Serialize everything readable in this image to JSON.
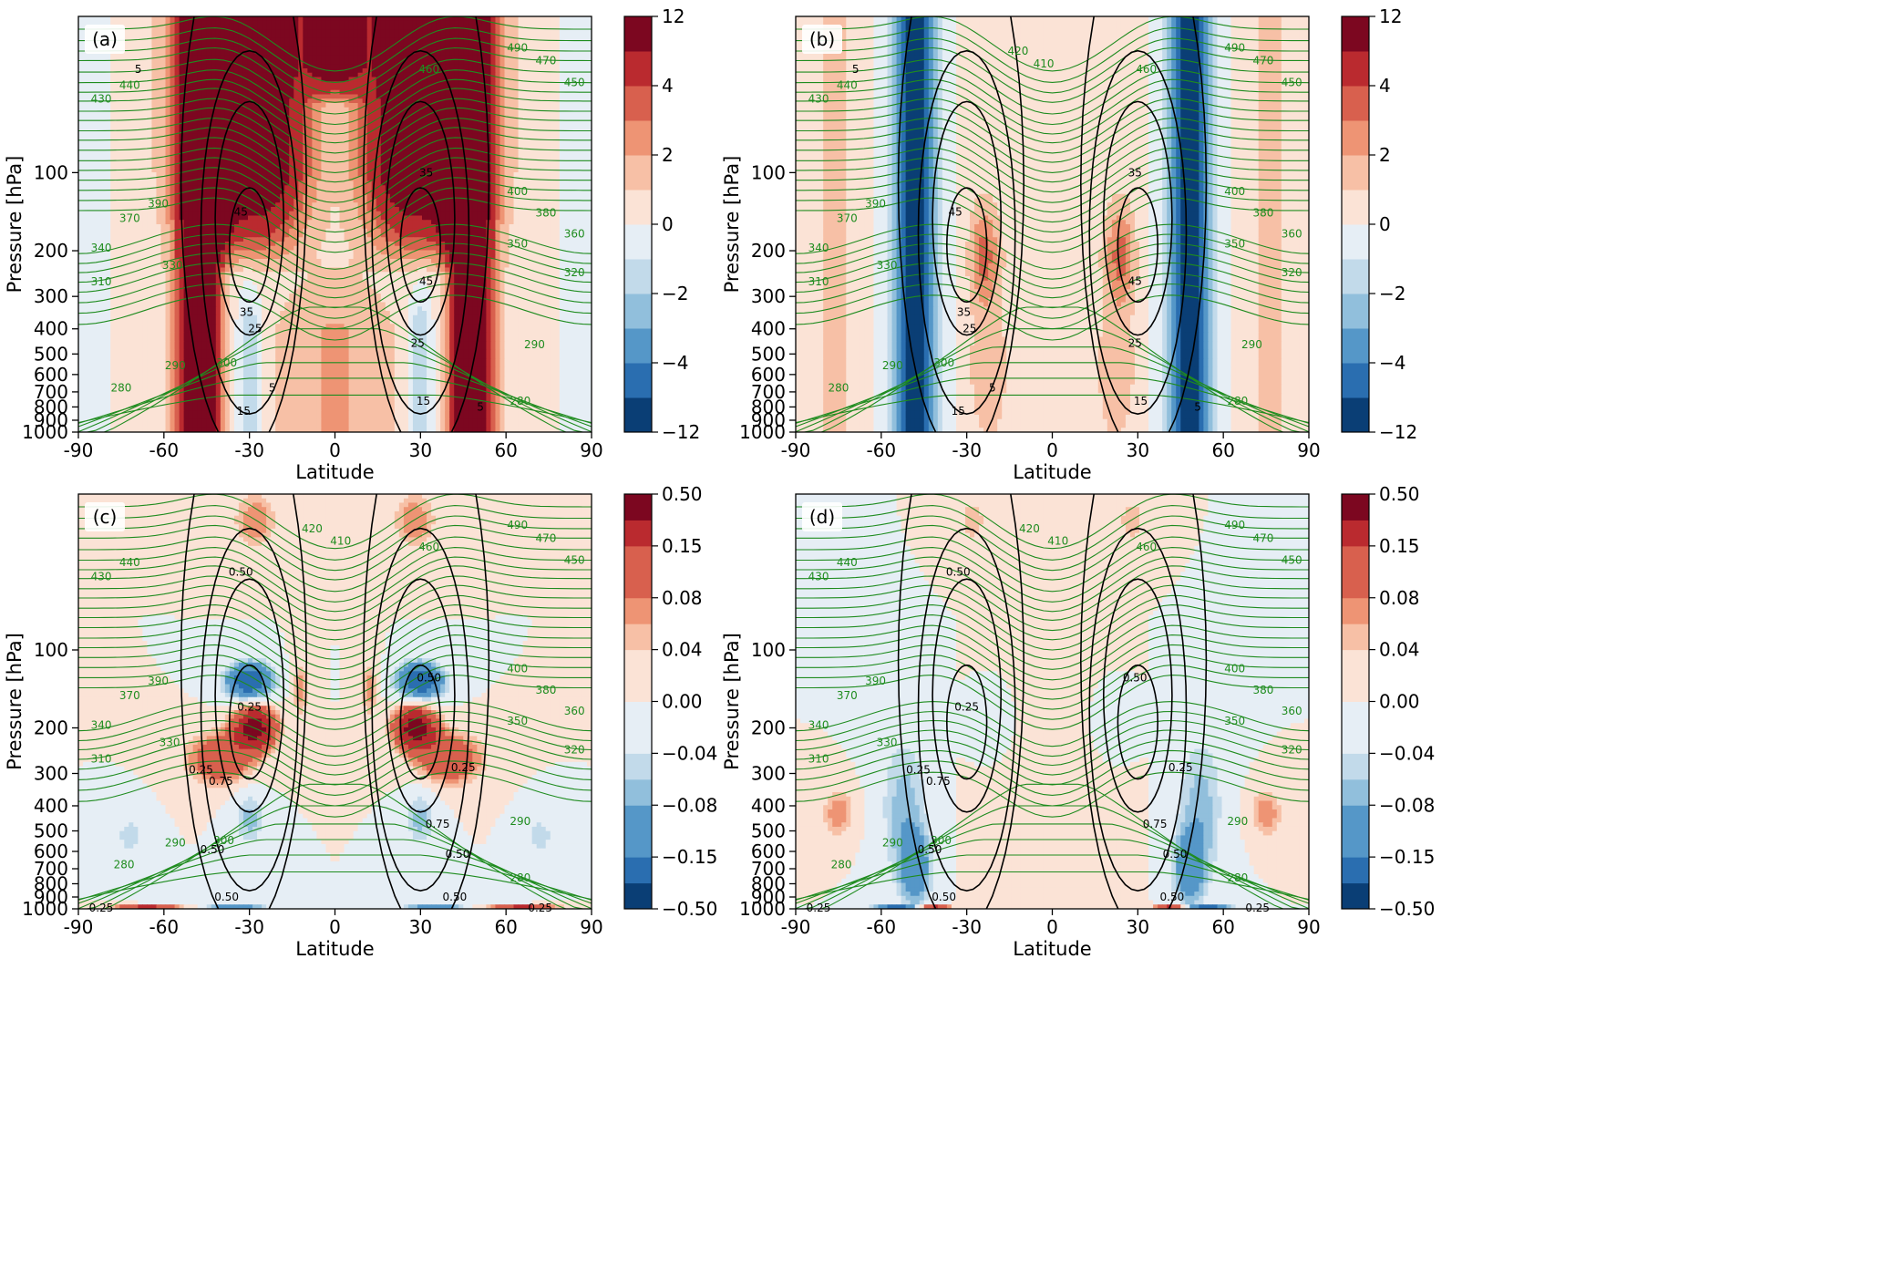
{
  "figure": {
    "colors": {
      "positive_scale": [
        "#fbe3d6",
        "#f7c0a6",
        "#ee9474",
        "#d8604e",
        "#ba2a2f",
        "#7c0720"
      ],
      "negative_scale": [
        "#e6eef5",
        "#c2daea",
        "#91bfdc",
        "#5597c8",
        "#2a6eb0",
        "#0a3e75"
      ],
      "theta_contour": "#1f8c1f",
      "wind_contour": "#000000"
    }
  },
  "chart_data": [
    {
      "type": "heatmap",
      "panel": "(a)",
      "xlabel": "Latitude",
      "ylabel": "Pressure [hPa]",
      "xlim": [
        -90,
        90
      ],
      "ylim": [
        1000,
        25
      ],
      "yscale": "log",
      "xticks": [
        "-90",
        "-60",
        "-30",
        "0",
        "30",
        "60",
        "90"
      ],
      "yticks": [
        "100",
        "200",
        "300",
        "400",
        "500",
        "600",
        "700",
        "800",
        "900",
        "1000"
      ],
      "colorbar_ticks": [
        "12",
        "4",
        "2",
        "0",
        "−2",
        "−4",
        "−12"
      ],
      "colorbar_bounds": [
        -12,
        -6,
        -4,
        -3,
        -2,
        -1,
        0,
        1,
        2,
        3,
        4,
        6,
        12
      ],
      "theta_labels": [
        {
          "text": "430",
          "lat": -82,
          "p": 52
        },
        {
          "text": "440",
          "lat": -72,
          "p": 46
        },
        {
          "text": "390",
          "lat": -62,
          "p": 132
        },
        {
          "text": "370",
          "lat": -72,
          "p": 150
        },
        {
          "text": "340",
          "lat": -82,
          "p": 195
        },
        {
          "text": "310",
          "lat": -82,
          "p": 263
        },
        {
          "text": "330",
          "lat": -57,
          "p": 228
        },
        {
          "text": "280",
          "lat": -75,
          "p": 675
        },
        {
          "text": "290",
          "lat": -56,
          "p": 555
        },
        {
          "text": "300",
          "lat": -38,
          "p": 540
        },
        {
          "text": "490",
          "lat": 64,
          "p": 33
        },
        {
          "text": "470",
          "lat": 74,
          "p": 37
        },
        {
          "text": "460",
          "lat": 33,
          "p": 40
        },
        {
          "text": "450",
          "lat": 84,
          "p": 45
        },
        {
          "text": "400",
          "lat": 64,
          "p": 118
        },
        {
          "text": "380",
          "lat": 74,
          "p": 143
        },
        {
          "text": "360",
          "lat": 84,
          "p": 172
        },
        {
          "text": "350",
          "lat": 64,
          "p": 188
        },
        {
          "text": "320",
          "lat": 84,
          "p": 243
        },
        {
          "text": "290",
          "lat": 70,
          "p": 460
        },
        {
          "text": "280",
          "lat": 65,
          "p": 760
        }
      ],
      "wind_labels": [
        {
          "text": "5",
          "lat": -69,
          "p": 40
        },
        {
          "text": "35",
          "lat": 32,
          "p": 100
        },
        {
          "text": "45",
          "lat": -33,
          "p": 142
        },
        {
          "text": "45",
          "lat": 32,
          "p": 262
        },
        {
          "text": "35",
          "lat": -31,
          "p": 345
        },
        {
          "text": "25",
          "lat": -28,
          "p": 400
        },
        {
          "text": "25",
          "lat": 29,
          "p": 455
        },
        {
          "text": "5",
          "lat": -22,
          "p": 675
        },
        {
          "text": "15",
          "lat": -32,
          "p": 830
        },
        {
          "text": "15",
          "lat": 31,
          "p": 760
        },
        {
          "text": "5",
          "lat": 51,
          "p": 800
        }
      ]
    },
    {
      "type": "heatmap",
      "panel": "(b)",
      "xlabel": "Latitude",
      "ylabel": "Pressure [hPa]",
      "xlim": [
        -90,
        90
      ],
      "ylim": [
        1000,
        25
      ],
      "yscale": "log",
      "xticks": [
        "-90",
        "-60",
        "-30",
        "0",
        "30",
        "60",
        "90"
      ],
      "yticks": [
        "100",
        "200",
        "300",
        "400",
        "500",
        "600",
        "700",
        "800",
        "900",
        "1000"
      ],
      "colorbar_ticks": [
        "12",
        "4",
        "2",
        "0",
        "−2",
        "−4",
        "−12"
      ],
      "colorbar_bounds": [
        -12,
        -6,
        -4,
        -3,
        -2,
        -1,
        0,
        1,
        2,
        3,
        4,
        6,
        12
      ],
      "theta_labels": [
        {
          "text": "430",
          "lat": -82,
          "p": 52
        },
        {
          "text": "440",
          "lat": -72,
          "p": 46
        },
        {
          "text": "420",
          "lat": -12,
          "p": 34
        },
        {
          "text": "410",
          "lat": -3,
          "p": 38
        },
        {
          "text": "390",
          "lat": -62,
          "p": 132
        },
        {
          "text": "370",
          "lat": -72,
          "p": 150
        },
        {
          "text": "340",
          "lat": -82,
          "p": 195
        },
        {
          "text": "310",
          "lat": -82,
          "p": 263
        },
        {
          "text": "330",
          "lat": -58,
          "p": 228
        },
        {
          "text": "280",
          "lat": -75,
          "p": 675
        },
        {
          "text": "290",
          "lat": -56,
          "p": 555
        },
        {
          "text": "300",
          "lat": -38,
          "p": 540
        },
        {
          "text": "490",
          "lat": 64,
          "p": 33
        },
        {
          "text": "470",
          "lat": 74,
          "p": 37
        },
        {
          "text": "460",
          "lat": 33,
          "p": 40
        },
        {
          "text": "450",
          "lat": 84,
          "p": 45
        },
        {
          "text": "400",
          "lat": 64,
          "p": 118
        },
        {
          "text": "380",
          "lat": 74,
          "p": 143
        },
        {
          "text": "360",
          "lat": 84,
          "p": 172
        },
        {
          "text": "350",
          "lat": 64,
          "p": 188
        },
        {
          "text": "320",
          "lat": 84,
          "p": 243
        },
        {
          "text": "290",
          "lat": 70,
          "p": 460
        },
        {
          "text": "280",
          "lat": 65,
          "p": 760
        }
      ],
      "wind_labels": [
        {
          "text": "5",
          "lat": -69,
          "p": 40
        },
        {
          "text": "35",
          "lat": 29,
          "p": 100
        },
        {
          "text": "45",
          "lat": -34,
          "p": 142
        },
        {
          "text": "45",
          "lat": 29,
          "p": 262
        },
        {
          "text": "35",
          "lat": -31,
          "p": 345
        },
        {
          "text": "25",
          "lat": -29,
          "p": 400
        },
        {
          "text": "25",
          "lat": 29,
          "p": 455
        },
        {
          "text": "5",
          "lat": -21,
          "p": 675
        },
        {
          "text": "15",
          "lat": -33,
          "p": 830
        },
        {
          "text": "15",
          "lat": 31,
          "p": 760
        },
        {
          "text": "5",
          "lat": 51,
          "p": 800
        }
      ]
    },
    {
      "type": "heatmap",
      "panel": "(c)",
      "xlabel": "Latitude",
      "ylabel": "Pressure [hPa]",
      "xlim": [
        -90,
        90
      ],
      "ylim": [
        1000,
        25
      ],
      "yscale": "log",
      "xticks": [
        "-90",
        "-60",
        "-30",
        "0",
        "30",
        "60",
        "90"
      ],
      "yticks": [
        "100",
        "200",
        "300",
        "400",
        "500",
        "600",
        "700",
        "800",
        "900",
        "1000"
      ],
      "colorbar_ticks": [
        "0.50",
        "0.15",
        "0.08",
        "0.04",
        "0.00",
        "−0.04",
        "−0.08",
        "−0.15",
        "−0.50"
      ],
      "colorbar_bounds": [
        -0.5,
        -0.25,
        -0.15,
        -0.1,
        -0.08,
        -0.06,
        -0.04,
        -0.02,
        0,
        0.02,
        0.04,
        0.06,
        0.08,
        0.1,
        0.15,
        0.25,
        0.5
      ],
      "theta_labels": [
        {
          "text": "430",
          "lat": -82,
          "p": 52
        },
        {
          "text": "440",
          "lat": -72,
          "p": 46
        },
        {
          "text": "420",
          "lat": -8,
          "p": 34
        },
        {
          "text": "410",
          "lat": 2,
          "p": 38
        },
        {
          "text": "390",
          "lat": -62,
          "p": 132
        },
        {
          "text": "370",
          "lat": -72,
          "p": 150
        },
        {
          "text": "340",
          "lat": -82,
          "p": 195
        },
        {
          "text": "330",
          "lat": -58,
          "p": 228
        },
        {
          "text": "310",
          "lat": -82,
          "p": 263
        },
        {
          "text": "280",
          "lat": -74,
          "p": 675
        },
        {
          "text": "290",
          "lat": -56,
          "p": 555
        },
        {
          "text": "300",
          "lat": -39,
          "p": 545
        },
        {
          "text": "490",
          "lat": 64,
          "p": 33
        },
        {
          "text": "470",
          "lat": 74,
          "p": 37
        },
        {
          "text": "460",
          "lat": 33,
          "p": 40
        },
        {
          "text": "450",
          "lat": 84,
          "p": 45
        },
        {
          "text": "400",
          "lat": 64,
          "p": 118
        },
        {
          "text": "380",
          "lat": 74,
          "p": 143
        },
        {
          "text": "360",
          "lat": 84,
          "p": 172
        },
        {
          "text": "350",
          "lat": 64,
          "p": 188
        },
        {
          "text": "320",
          "lat": 84,
          "p": 243
        },
        {
          "text": "290",
          "lat": 65,
          "p": 460
        },
        {
          "text": "280",
          "lat": 65,
          "p": 760
        }
      ],
      "wind_labels": [
        {
          "text": "0.50",
          "lat": -33,
          "p": 50
        },
        {
          "text": "0.50",
          "lat": 33,
          "p": 128
        },
        {
          "text": "0.25",
          "lat": -30,
          "p": 166
        },
        {
          "text": "0.25",
          "lat": -47,
          "p": 290
        },
        {
          "text": "0.75",
          "lat": -40,
          "p": 322
        },
        {
          "text": "0.25",
          "lat": 45,
          "p": 285
        },
        {
          "text": "0.75",
          "lat": 36,
          "p": 470
        },
        {
          "text": "0.50",
          "lat": -43,
          "p": 590
        },
        {
          "text": "0.50",
          "lat": 43,
          "p": 615
        },
        {
          "text": "0.50",
          "lat": -38,
          "p": 900
        },
        {
          "text": "0.50",
          "lat": 42,
          "p": 900
        },
        {
          "text": "0.25",
          "lat": -82,
          "p": 990
        },
        {
          "text": "0.25",
          "lat": 72,
          "p": 990
        }
      ]
    },
    {
      "type": "heatmap",
      "panel": "(d)",
      "xlabel": "Latitude",
      "ylabel": "Pressure [hPa]",
      "xlim": [
        -90,
        90
      ],
      "ylim": [
        1000,
        25
      ],
      "yscale": "log",
      "xticks": [
        "-90",
        "-60",
        "-30",
        "0",
        "30",
        "60",
        "90"
      ],
      "yticks": [
        "100",
        "200",
        "300",
        "400",
        "500",
        "600",
        "700",
        "800",
        "900",
        "1000"
      ],
      "colorbar_ticks": [
        "0.50",
        "0.15",
        "0.08",
        "0.04",
        "0.00",
        "−0.04",
        "−0.08",
        "−0.15",
        "−0.50"
      ],
      "colorbar_bounds": [
        -0.5,
        -0.25,
        -0.15,
        -0.1,
        -0.08,
        -0.06,
        -0.04,
        -0.02,
        0,
        0.02,
        0.04,
        0.06,
        0.08,
        0.1,
        0.15,
        0.25,
        0.5
      ],
      "theta_labels": [
        {
          "text": "430",
          "lat": -82,
          "p": 52
        },
        {
          "text": "440",
          "lat": -72,
          "p": 46
        },
        {
          "text": "420",
          "lat": -8,
          "p": 34
        },
        {
          "text": "410",
          "lat": 2,
          "p": 38
        },
        {
          "text": "390",
          "lat": -62,
          "p": 132
        },
        {
          "text": "370",
          "lat": -72,
          "p": 150
        },
        {
          "text": "340",
          "lat": -82,
          "p": 195
        },
        {
          "text": "330",
          "lat": -58,
          "p": 228
        },
        {
          "text": "310",
          "lat": -82,
          "p": 263
        },
        {
          "text": "280",
          "lat": -74,
          "p": 675
        },
        {
          "text": "290",
          "lat": -56,
          "p": 555
        },
        {
          "text": "300",
          "lat": -39,
          "p": 545
        },
        {
          "text": "490",
          "lat": 64,
          "p": 33
        },
        {
          "text": "470",
          "lat": 74,
          "p": 37
        },
        {
          "text": "460",
          "lat": 33,
          "p": 40
        },
        {
          "text": "450",
          "lat": 84,
          "p": 45
        },
        {
          "text": "400",
          "lat": 64,
          "p": 118
        },
        {
          "text": "380",
          "lat": 74,
          "p": 143
        },
        {
          "text": "360",
          "lat": 84,
          "p": 172
        },
        {
          "text": "350",
          "lat": 64,
          "p": 188
        },
        {
          "text": "320",
          "lat": 84,
          "p": 243
        },
        {
          "text": "290",
          "lat": 65,
          "p": 460
        },
        {
          "text": "280",
          "lat": 65,
          "p": 760
        }
      ],
      "wind_labels": [
        {
          "text": "0.50",
          "lat": -33,
          "p": 50
        },
        {
          "text": "0.50",
          "lat": 29,
          "p": 128
        },
        {
          "text": "0.25",
          "lat": -30,
          "p": 166
        },
        {
          "text": "0.25",
          "lat": -47,
          "p": 290
        },
        {
          "text": "0.75",
          "lat": -40,
          "p": 322
        },
        {
          "text": "0.25",
          "lat": 45,
          "p": 285
        },
        {
          "text": "0.75",
          "lat": 36,
          "p": 470
        },
        {
          "text": "0.50",
          "lat": -43,
          "p": 590
        },
        {
          "text": "0.50",
          "lat": 43,
          "p": 615
        },
        {
          "text": "0.50",
          "lat": -38,
          "p": 900
        },
        {
          "text": "0.50",
          "lat": 42,
          "p": 900
        },
        {
          "text": "0.25",
          "lat": -82,
          "p": 990
        },
        {
          "text": "0.25",
          "lat": 72,
          "p": 990
        }
      ]
    }
  ]
}
